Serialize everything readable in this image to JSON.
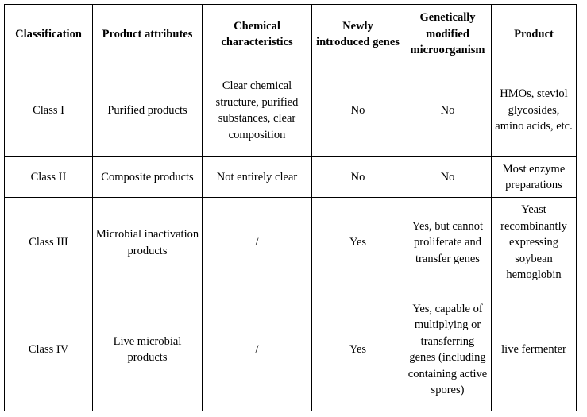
{
  "table": {
    "headers": [
      "Classification",
      "Product attributes",
      "Chemical characteristics",
      "Newly introduced genes",
      "Genetically modified microorganism",
      "Product"
    ],
    "rows": [
      [
        "Class I",
        "Purified products",
        "Clear chemical structure, purified substances, clear composition",
        "No",
        "No",
        "HMOs, steviol glycosides, amino acids, etc."
      ],
      [
        "Class II",
        "Composite products",
        "Not entirely clear",
        "No",
        "No",
        "Most enzyme preparations"
      ],
      [
        "Class III",
        "Microbial inactivation products",
        "/",
        "Yes",
        "Yes, but cannot proliferate and transfer genes",
        "Yeast recombinantly expressing soybean hemoglobin"
      ],
      [
        "Class IV",
        "Live microbial products",
        "/",
        "Yes",
        "Yes, capable of multiplying or transferring genes (including containing active spores)",
        "live fermenter"
      ]
    ]
  }
}
